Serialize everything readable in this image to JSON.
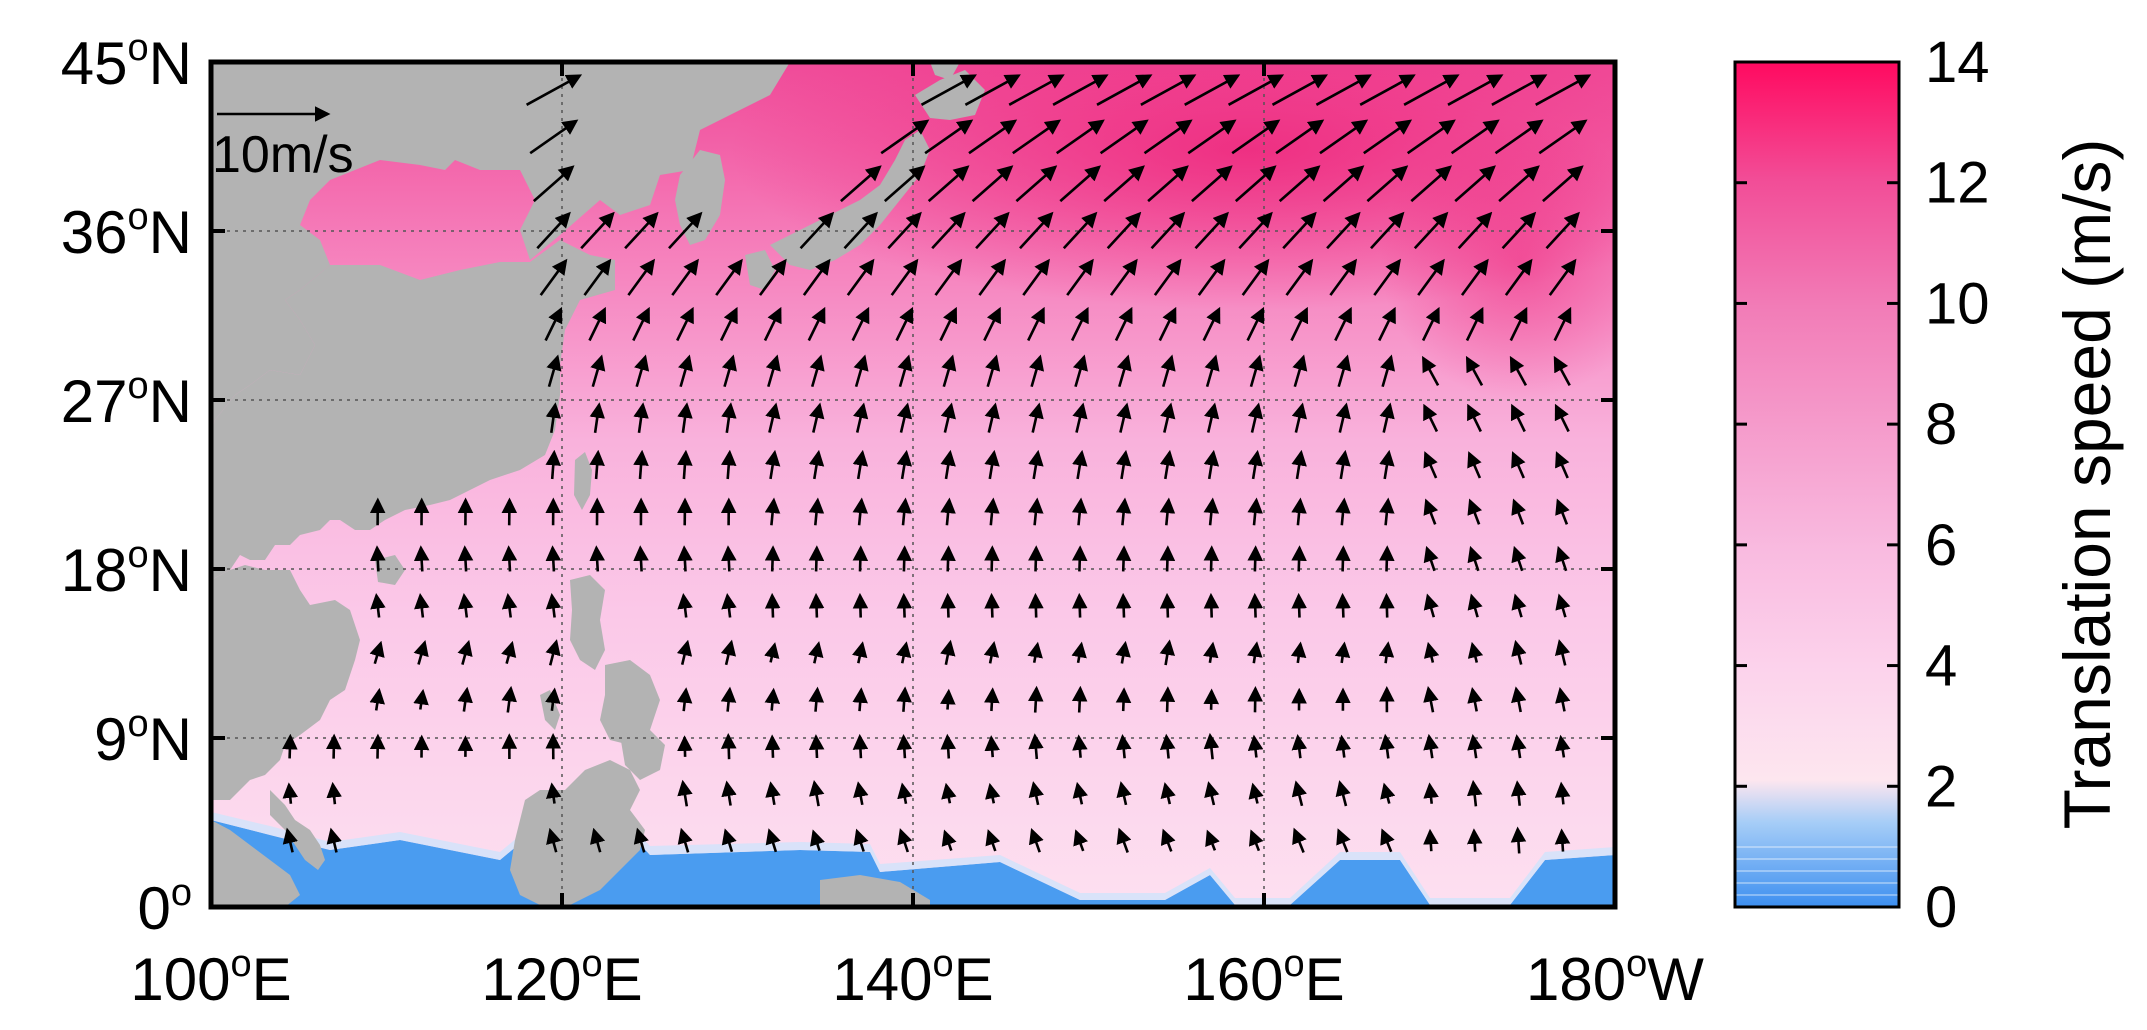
{
  "map": {
    "x_axis": {
      "range": [
        100,
        180
      ],
      "ticks": [
        {
          "value": 100,
          "num": "100",
          "hemi": "E"
        },
        {
          "value": 120,
          "num": "120",
          "hemi": "E"
        },
        {
          "value": 140,
          "num": "140",
          "hemi": "E"
        },
        {
          "value": 160,
          "num": "160",
          "hemi": "E"
        },
        {
          "value": 180,
          "num": "180",
          "hemi": "W"
        }
      ]
    },
    "y_axis": {
      "range": [
        0,
        45
      ],
      "ticks": [
        {
          "value": 0,
          "num": "0",
          "hemi": ""
        },
        {
          "value": 9,
          "num": "9",
          "hemi": "N"
        },
        {
          "value": 18,
          "num": "18",
          "hemi": "N"
        },
        {
          "value": 27,
          "num": "27",
          "hemi": "N"
        },
        {
          "value": 36,
          "num": "36",
          "hemi": "N"
        },
        {
          "value": 45,
          "num": "45",
          "hemi": "N"
        }
      ]
    },
    "degree_symbol": "o",
    "grid": true,
    "reference_vector": {
      "value": 10,
      "label": "10m/s"
    },
    "colors": {
      "land": "#b3b3b3",
      "low_speed": "#4a9cf0",
      "mid_speed": "#fcd2ec",
      "high_speed": "#ff1a6e"
    }
  },
  "colorbar": {
    "title": "Translation speed (m/s)",
    "range": [
      0,
      14
    ],
    "ticks": [
      0,
      2,
      4,
      6,
      8,
      10,
      12,
      14
    ]
  }
}
